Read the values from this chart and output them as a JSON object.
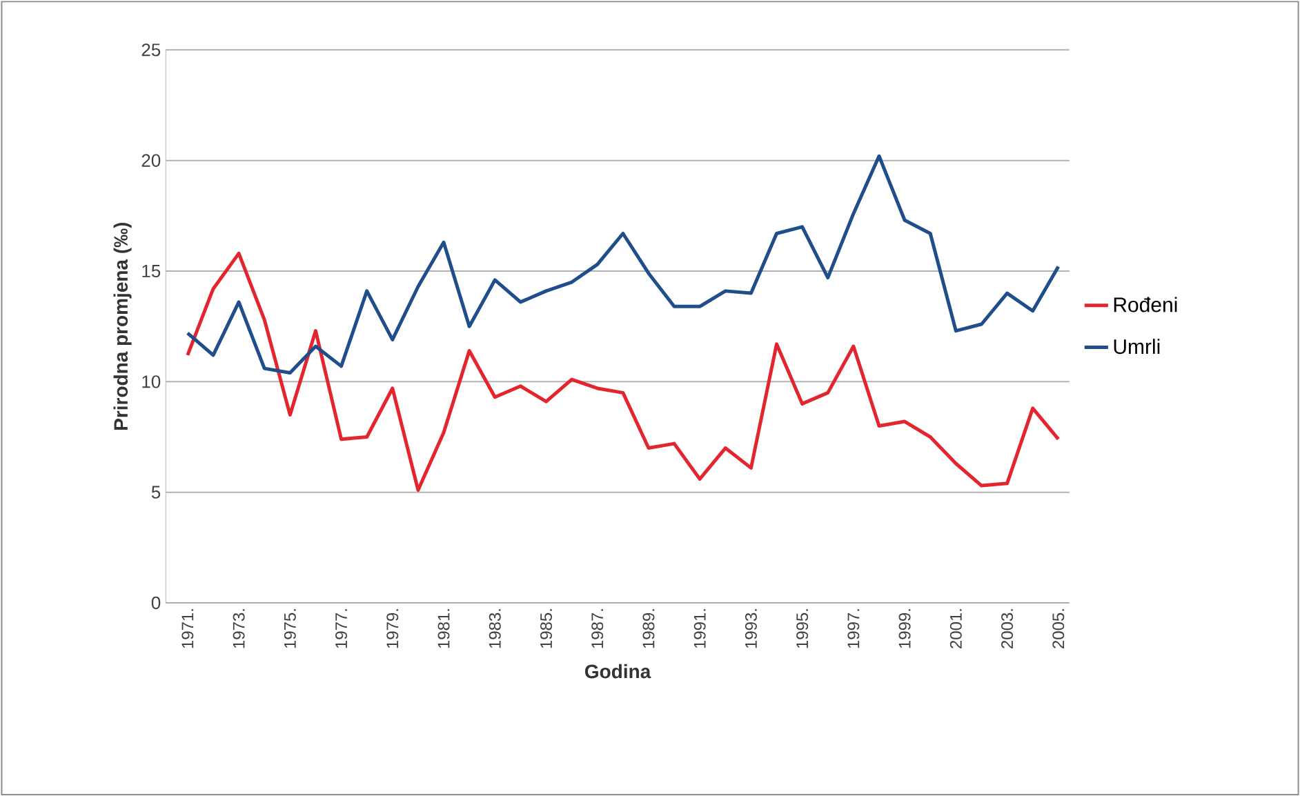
{
  "chart_data": {
    "type": "line",
    "xlabel": "Godina",
    "ylabel": "Prirodna promjena (‰)",
    "categories": [
      "1971.",
      null,
      "1973.",
      null,
      "1975.",
      null,
      "1977.",
      null,
      "1979.",
      null,
      "1981.",
      null,
      "1983.",
      null,
      "1985.",
      null,
      "1987.",
      null,
      "1989.",
      null,
      "1991.",
      null,
      "1993.",
      null,
      "1995.",
      null,
      "1997.",
      null,
      "1999.",
      null,
      "2001.",
      null,
      "2003.",
      null,
      "2005."
    ],
    "series": [
      {
        "name": "Rođeni",
        "color": "#e3262e",
        "values": [
          11.2,
          14.2,
          15.8,
          12.8,
          8.5,
          12.3,
          7.4,
          7.5,
          9.7,
          5.1,
          7.7,
          11.4,
          9.3,
          9.8,
          9.1,
          10.1,
          9.7,
          9.5,
          7.0,
          7.2,
          5.6,
          7.0,
          6.1,
          11.7,
          9.0,
          9.5,
          11.6,
          8.0,
          8.2,
          7.5,
          6.3,
          5.3,
          5.4,
          8.8,
          7.4
        ]
      },
      {
        "name": "Umrli",
        "color": "#1f4e8a",
        "values": [
          12.2,
          11.2,
          13.6,
          10.6,
          10.4,
          11.6,
          10.7,
          14.1,
          11.9,
          14.3,
          16.3,
          12.5,
          14.6,
          13.6,
          14.1,
          14.5,
          15.3,
          16.7,
          14.9,
          13.4,
          13.4,
          14.1,
          14.0,
          16.7,
          17.0,
          14.7,
          17.6,
          20.2,
          17.3,
          16.7,
          12.3,
          12.6,
          14.0,
          13.2,
          15.2
        ]
      }
    ],
    "ylim": [
      0,
      25
    ],
    "yticks": [
      0,
      5,
      10,
      15,
      20,
      25
    ],
    "grid": "y",
    "legend": "right",
    "marker": "none",
    "line_style": "solid"
  }
}
